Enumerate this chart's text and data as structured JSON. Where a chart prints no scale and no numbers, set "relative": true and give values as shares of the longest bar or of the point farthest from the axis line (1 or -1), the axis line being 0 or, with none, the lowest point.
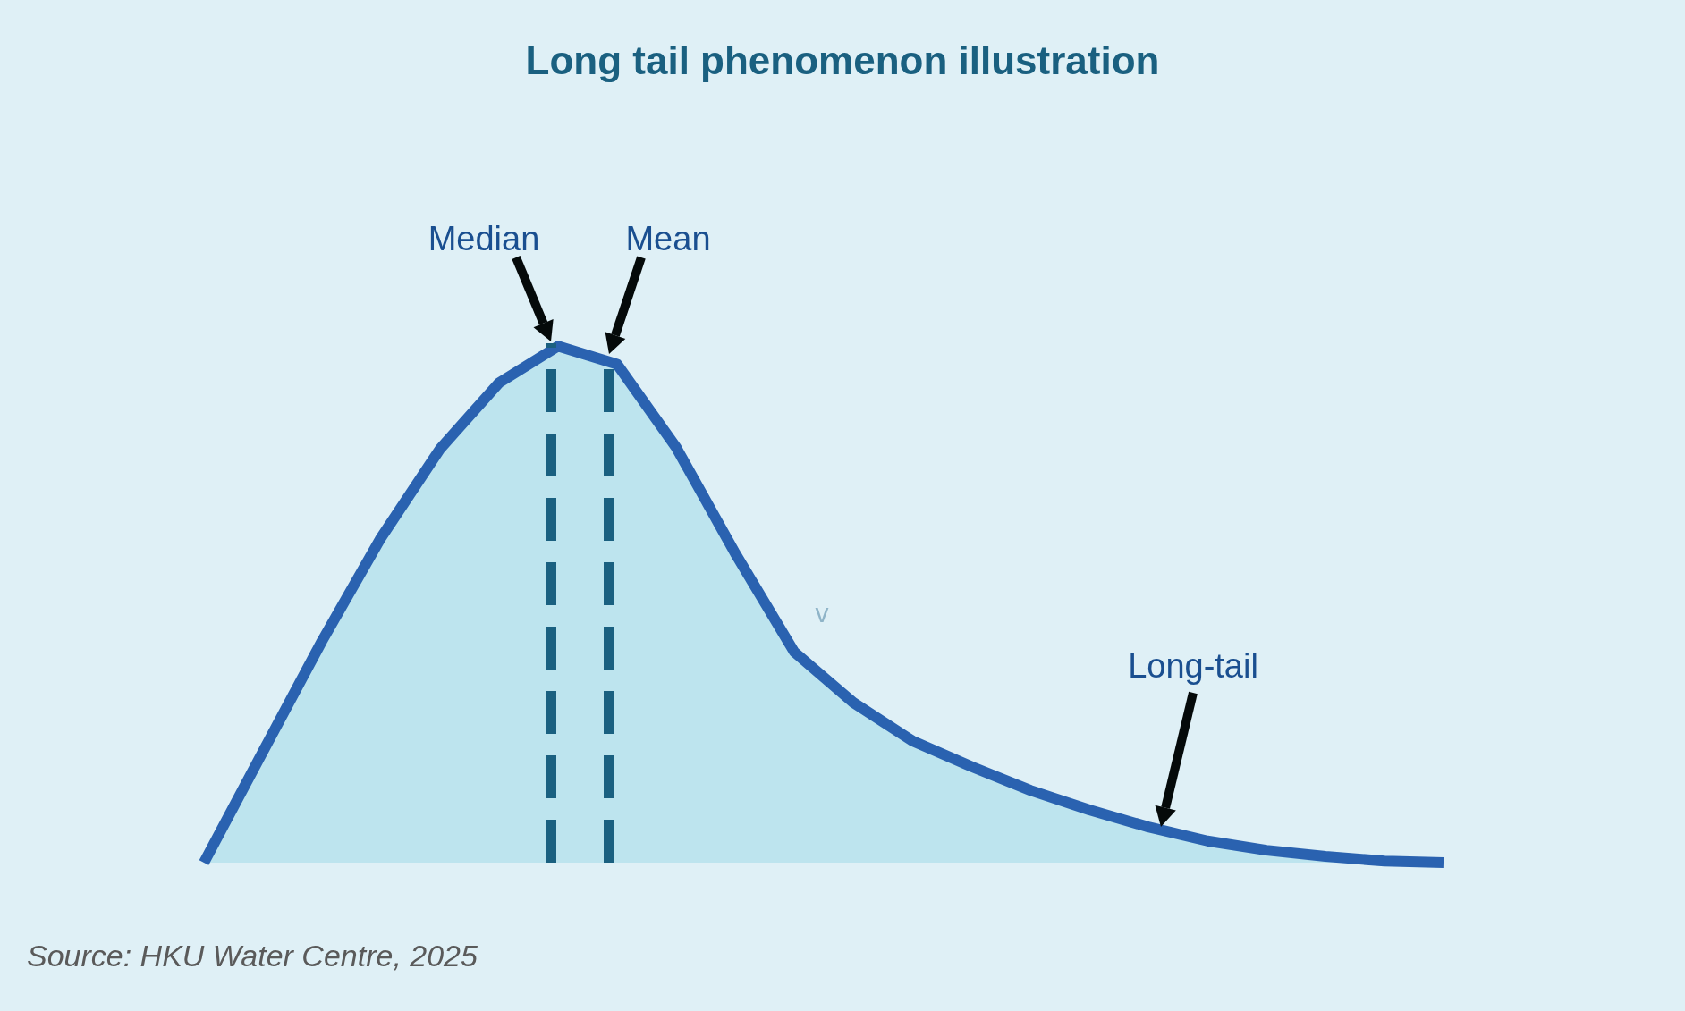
{
  "chart_data": {
    "type": "area",
    "title": "Long tail phenomenon illustration",
    "relative": true,
    "categories": [
      null,
      null,
      null,
      null,
      null,
      null,
      null,
      null,
      null,
      null,
      null,
      null,
      null,
      null,
      null,
      null,
      null,
      null,
      null,
      null,
      null,
      null
    ],
    "series": [
      {
        "color": "#2a62b0",
        "values": [
          0,
          0.215,
          0.429,
          0.629,
          0.801,
          0.929,
          1.0,
          0.965,
          0.804,
          0.599,
          0.408,
          0.31,
          0.236,
          0.186,
          0.14,
          0.102,
          0.069,
          0.042,
          0.024,
          0.012,
          0.003,
          0
        ]
      }
    ],
    "annotations": [
      "Median",
      "Mean",
      "Long-tail",
      "Source: HKU Water Centre, 2025",
      "v"
    ]
  }
}
